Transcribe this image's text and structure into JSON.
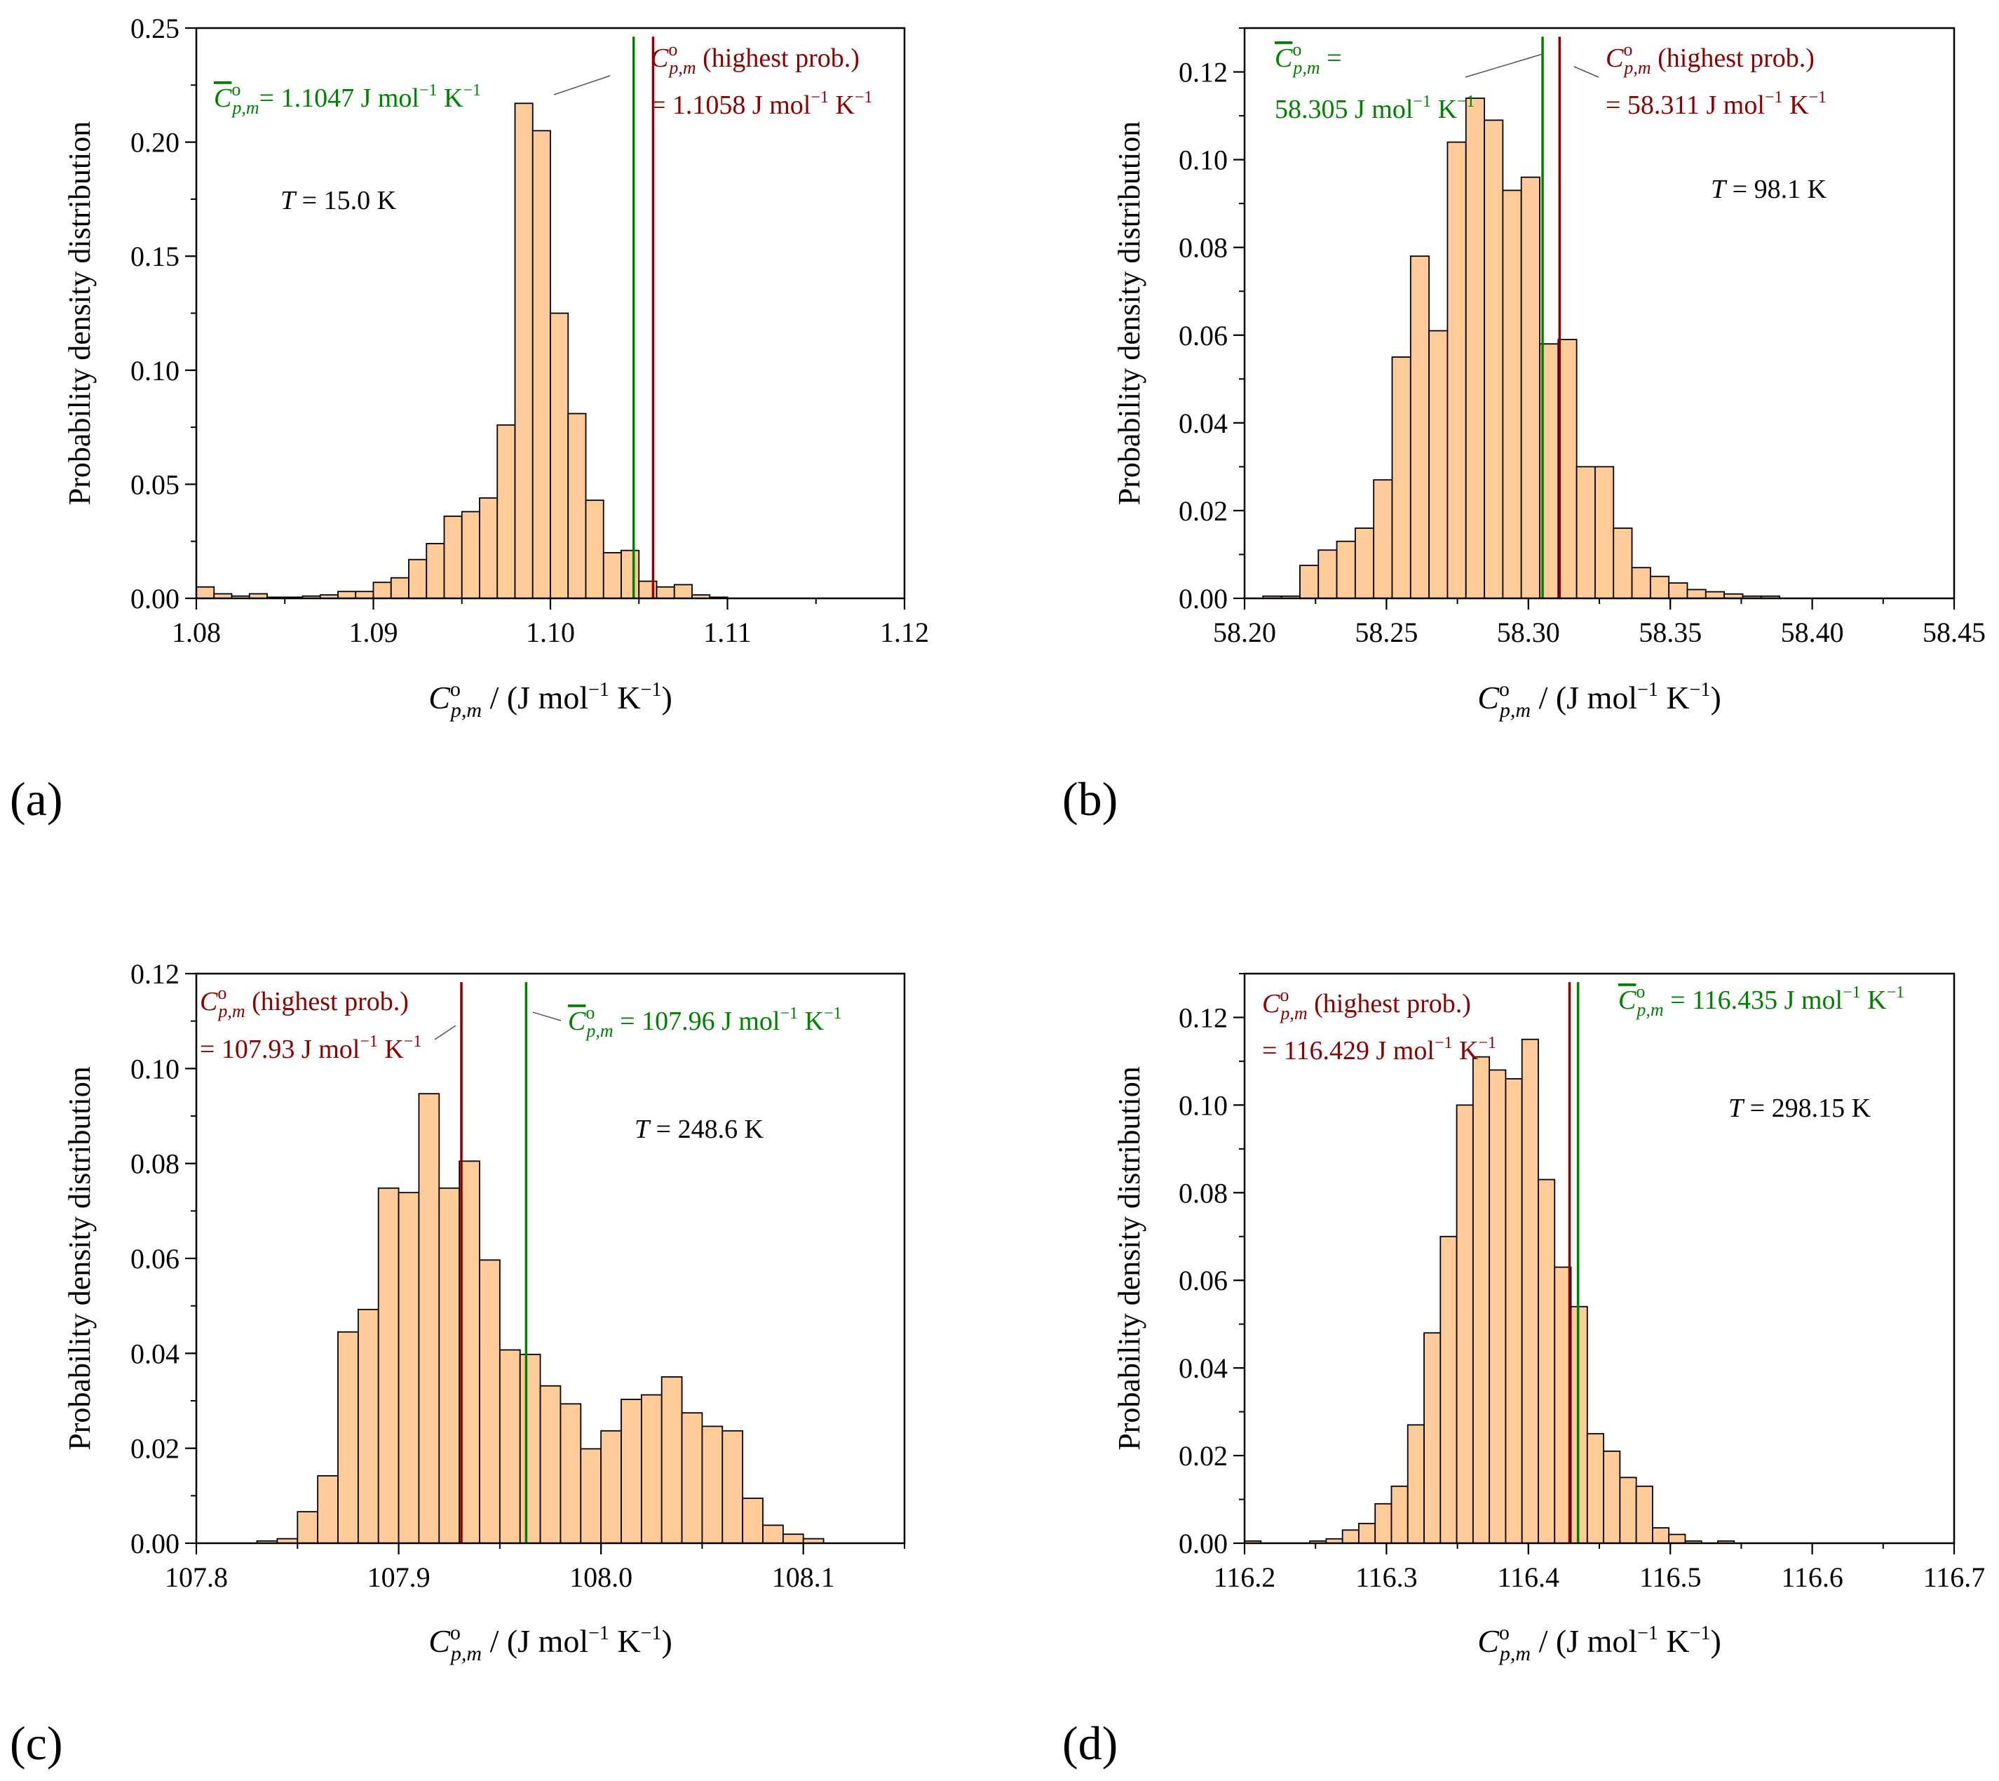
{
  "figure": {
    "panel_labels": [
      "(a)",
      "(b)",
      "(c)",
      "(d)"
    ]
  },
  "colors": {
    "bar_fill": "#ffcc99",
    "bar_stroke": "#000000",
    "mean_line": "#008000",
    "mode_line": "#8b0000",
    "axis": "#000000"
  },
  "chart_data": [
    {
      "type": "bar",
      "panel": "(a)",
      "xlabel_main": "C",
      "xlabel_sup": "o",
      "xlabel_sub": "p,m",
      "xlabel_units": " / (J mol",
      "xlabel_exp1": "−1",
      "xlabel_k": " K",
      "xlabel_exp2": "−1",
      "xlabel_close": ")",
      "ylabel": "Probability density distribution",
      "xlim": [
        1.08,
        1.12
      ],
      "ylim": [
        0,
        0.25
      ],
      "xticks": [
        1.08,
        1.09,
        1.1,
        1.11,
        1.12
      ],
      "xtick_labels": [
        "1.08",
        "1.09",
        "1.10",
        "1.11",
        "1.12"
      ],
      "yticks": [
        0,
        0.05,
        0.1,
        0.15,
        0.2,
        0.25
      ],
      "ytick_labels": [
        "0.00",
        "0.05",
        "0.10",
        "0.15",
        "0.20",
        "0.25"
      ],
      "bin_width": 0.001,
      "bin_starts": [
        1.08,
        1.081,
        1.082,
        1.083,
        1.084,
        1.085,
        1.086,
        1.087,
        1.088,
        1.089,
        1.09,
        1.091,
        1.092,
        1.093,
        1.094,
        1.095,
        1.096,
        1.097,
        1.098,
        1.099,
        1.1,
        1.101,
        1.102,
        1.103,
        1.104,
        1.105,
        1.106,
        1.107,
        1.108,
        1.109,
        1.11,
        1.111,
        1.112,
        1.113,
        1.114,
        1.115,
        1.116,
        1.117,
        1.118,
        1.119
      ],
      "values": [
        0.005,
        0.002,
        0.001,
        0.002,
        0.0005,
        0.0005,
        0.001,
        0.0015,
        0.003,
        0.003,
        0.007,
        0.009,
        0.017,
        0.024,
        0.036,
        0.038,
        0.044,
        0.076,
        0.217,
        0.205,
        0.125,
        0.081,
        0.043,
        0.02,
        0.021,
        0.0075,
        0.005,
        0.006,
        0.0015,
        0.0005,
        0.0,
        0.0,
        0.0,
        0.0,
        0.0,
        0.0,
        0.0,
        0.0,
        0.0,
        0.0
      ],
      "bar_offset_bins": 6,
      "mean_value": 1.1047,
      "mode_value": 1.1058,
      "mean_text": "= 1.1047 J mol",
      "mean_text_exp1": "−1",
      "mean_text_k": " K",
      "mean_text_exp2": "−1",
      "mean_symbol": "C",
      "mean_sup": "o",
      "mean_sub": "p,m",
      "mode_symbol": "C",
      "mode_sup": "o",
      "mode_sub": "p,m",
      "mode_text_1": " (highest prob.)",
      "mode_text_2": "= 1.1058 J mol",
      "mode_text_2_exp1": "−1",
      "mode_text_2_k": " K",
      "mode_text_2_exp2": "−1",
      "temperature_symbol": "T",
      "temperature_text": " = 15.0 K"
    },
    {
      "type": "bar",
      "panel": "(b)",
      "xlabel_main": "C",
      "xlabel_sup": "o",
      "xlabel_sub": "p,m",
      "xlabel_units": " / (J mol",
      "xlabel_exp1": "−1",
      "xlabel_k": " K",
      "xlabel_exp2": "−1",
      "xlabel_close": ")",
      "ylabel": "Probability density distribution",
      "xlim": [
        58.2,
        58.45
      ],
      "ylim": [
        0,
        0.13
      ],
      "xticks": [
        58.2,
        58.25,
        58.3,
        58.35,
        58.4,
        58.45
      ],
      "xtick_labels": [
        "58.20",
        "58.25",
        "58.30",
        "58.35",
        "58.40",
        "58.45"
      ],
      "yticks": [
        0,
        0.02,
        0.04,
        0.06,
        0.08,
        0.1,
        0.12
      ],
      "ytick_labels": [
        "0.00",
        "0.02",
        "0.04",
        "0.06",
        "0.08",
        "0.10",
        "0.12"
      ],
      "bin_width": 0.0065,
      "bin_starts": [
        58.2065,
        58.213,
        58.2195,
        58.226,
        58.2325,
        58.239,
        58.2455,
        58.252,
        58.2585,
        58.265,
        58.2715,
        58.278,
        58.2845,
        58.291,
        58.2975,
        58.304,
        58.3105,
        58.317,
        58.3235,
        58.33,
        58.3365,
        58.343,
        58.3495,
        58.356,
        58.3625,
        58.369,
        58.3755,
        58.382,
        58.3885,
        58.395,
        58.4015,
        58.408,
        58.4145
      ],
      "values": [
        0.0005,
        0.0005,
        0.0075,
        0.011,
        0.013,
        0.016,
        0.027,
        0.055,
        0.078,
        0.061,
        0.104,
        0.114,
        0.109,
        0.093,
        0.096,
        0.058,
        0.059,
        0.03,
        0.03,
        0.016,
        0.007,
        0.005,
        0.0035,
        0.002,
        0.0015,
        0.001,
        0.0005,
        0.0005,
        0.0,
        0.0,
        0.0,
        0.0,
        0.0
      ],
      "mean_value": 58.305,
      "mode_value": 58.311,
      "mean_symbol": "C",
      "mean_sup": "o",
      "mean_sub": "p,m",
      "mean_text": " = ",
      "mean_text_line2": "58.305 J mol",
      "mean_text_exp1": "−1",
      "mean_text_k": " K",
      "mean_text_exp2": "−1",
      "mode_symbol": "C",
      "mode_sup": "o",
      "mode_sub": "p,m",
      "mode_text_1": " (highest prob.)",
      "mode_text_2": "= 58.311 J mol",
      "mode_text_2_exp1": "−1",
      "mode_text_2_k": " K",
      "mode_text_2_exp2": "−1",
      "temperature_symbol": "T",
      "temperature_text": " = 98.1 K"
    },
    {
      "type": "bar",
      "panel": "(c)",
      "xlabel_main": "C",
      "xlabel_sup": "o",
      "xlabel_sub": "p,m",
      "xlabel_units": " / (J mol",
      "xlabel_exp1": "−1",
      "xlabel_k": " K",
      "xlabel_exp2": "−1",
      "xlabel_close": ")",
      "ylabel": "Probability density distribution",
      "xlim": [
        107.8,
        108.15
      ],
      "ylim": [
        0,
        0.12
      ],
      "xticks": [
        107.8,
        107.9,
        108.0,
        108.1
      ],
      "xtick_labels": [
        "107.8",
        "107.9",
        "108.0",
        "108.1"
      ],
      "yticks": [
        0,
        0.02,
        0.04,
        0.06,
        0.08,
        0.1,
        0.12
      ],
      "ytick_labels": [
        "0.00",
        "0.02",
        "0.04",
        "0.06",
        "0.08",
        "0.10",
        "0.12"
      ],
      "bin_width": 0.01,
      "bin_starts": [
        107.82,
        107.83,
        107.84,
        107.85,
        107.86,
        107.87,
        107.88,
        107.89,
        107.9,
        107.91,
        107.92,
        107.93,
        107.94,
        107.95,
        107.96,
        107.97,
        107.98,
        107.99,
        108.0,
        108.01,
        108.02,
        108.03,
        108.04,
        108.05,
        108.06,
        108.07,
        108.08,
        108.09,
        108.1,
        108.11,
        108.12,
        108.13,
        108.14
      ],
      "values": [
        0.0,
        0.0005,
        0.001,
        0.007,
        0.015,
        0.047,
        0.052,
        0.079,
        0.078,
        0.1,
        0.079,
        0.085,
        0.063,
        0.043,
        0.042,
        0.035,
        0.031,
        0.021,
        0.025,
        0.032,
        0.033,
        0.037,
        0.029,
        0.026,
        0.025,
        0.01,
        0.004,
        0.002,
        0.001,
        0.0,
        0.0,
        0.0,
        0.0
      ],
      "bar_scale": 0.947,
      "mean_value": 107.963,
      "mode_value": 107.931,
      "mean_symbol": "C",
      "mean_sup": "o",
      "mean_sub": "p,m",
      "mean_text": " = 107.96 J mol",
      "mean_text_exp1": "−1",
      "mean_text_k": " K",
      "mean_text_exp2": "−1",
      "mode_symbol": "C",
      "mode_sup": "o",
      "mode_sub": "p,m",
      "mode_text_1": " (highest prob.)",
      "mode_text_2": "= 107.93 J mol",
      "mode_text_2_exp1": "−1",
      "mode_text_2_k": " K",
      "mode_text_2_exp2": "−1",
      "temperature_symbol": "T",
      "temperature_text": " = 248.6 K"
    },
    {
      "type": "bar",
      "panel": "(d)",
      "xlabel_main": "C",
      "xlabel_sup": "o",
      "xlabel_sub": "p,m",
      "xlabel_units": " / (J mol",
      "xlabel_exp1": "−1",
      "xlabel_k": " K",
      "xlabel_exp2": "−1",
      "xlabel_close": ")",
      "ylabel": "Probability density distribution",
      "xlim": [
        116.2,
        116.7
      ],
      "ylim": [
        0,
        0.13
      ],
      "xticks": [
        116.2,
        116.3,
        116.4,
        116.5,
        116.6,
        116.7
      ],
      "xtick_labels": [
        "116.2",
        "116.3",
        "116.4",
        "116.5",
        "116.6",
        "116.7"
      ],
      "yticks": [
        0,
        0.02,
        0.04,
        0.06,
        0.08,
        0.1,
        0.12
      ],
      "ytick_labels": [
        "0.00",
        "0.02",
        "0.04",
        "0.06",
        "0.08",
        "0.10",
        "0.12"
      ],
      "bin_width": 0.0115,
      "bin_starts": [
        116.2,
        116.2115,
        116.223,
        116.2345,
        116.246,
        116.2575,
        116.269,
        116.2805,
        116.292,
        116.3035,
        116.315,
        116.3265,
        116.338,
        116.3495,
        116.361,
        116.3725,
        116.384,
        116.3955,
        116.407,
        116.4185,
        116.43,
        116.4415,
        116.453,
        116.4645,
        116.476,
        116.4875,
        116.499,
        116.5105,
        116.522,
        116.5335,
        116.545,
        116.5565,
        116.568,
        116.5795,
        116.591,
        116.6025,
        116.614,
        116.6255,
        116.637
      ],
      "values": [
        0.0005,
        0.0,
        0.0,
        0.0,
        0.0005,
        0.001,
        0.003,
        0.0045,
        0.009,
        0.013,
        0.027,
        0.048,
        0.07,
        0.1,
        0.111,
        0.108,
        0.106,
        0.115,
        0.083,
        0.063,
        0.054,
        0.025,
        0.021,
        0.015,
        0.013,
        0.0035,
        0.002,
        0.0005,
        0.0,
        0.0005,
        0.0,
        0.0,
        0.0,
        0.0,
        0.0,
        0.0,
        0.0,
        0.0,
        0.0
      ],
      "mean_value": 116.435,
      "mode_value": 116.429,
      "mean_symbol": "C",
      "mean_sup": "o",
      "mean_sub": "p,m",
      "mean_text": " = 116.435 J mol",
      "mean_text_exp1": "−1",
      "mean_text_k": " K",
      "mean_text_exp2": "−1",
      "mode_symbol": "C",
      "mode_sup": "o",
      "mode_sub": "p,m",
      "mode_text_1": " (highest prob.)",
      "mode_text_2": "= 116.429 J mol",
      "mode_text_2_exp1": "−1",
      "mode_text_2_k": " K",
      "mode_text_2_exp2": "−1",
      "temperature_symbol": "T",
      "temperature_text": " = 298.15 K"
    }
  ]
}
